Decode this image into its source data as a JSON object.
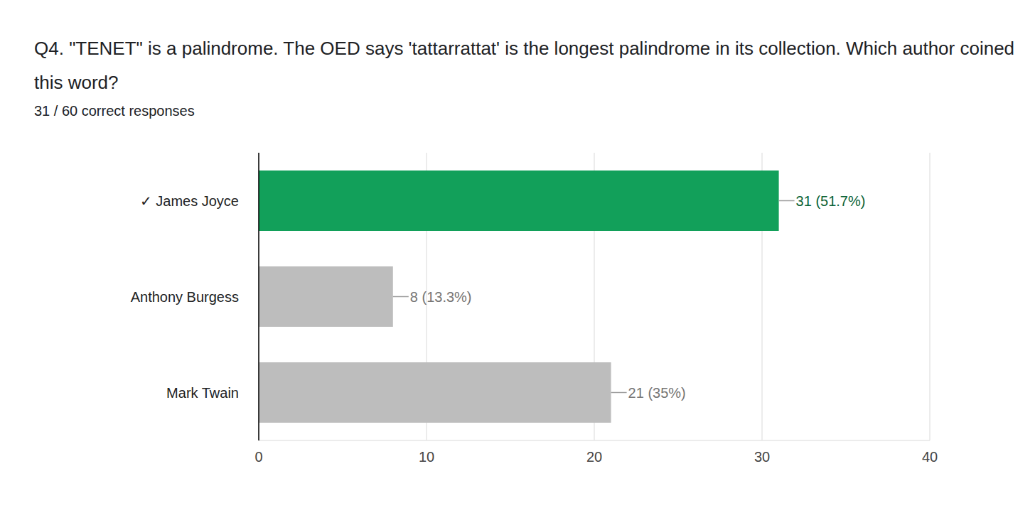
{
  "chart_data": {
    "type": "bar",
    "title": "Q4. \"TENET\" is a palindrome. The OED says 'tattarrattat' is the longest palindrome in its collection. Which author coined this word?",
    "subtitle": "31 / 60 correct responses",
    "categories": [
      "✓ James Joyce",
      "Anthony Burgess",
      "Mark Twain"
    ],
    "values": [
      31,
      8,
      21
    ],
    "value_labels": [
      "31 (51.7%)",
      "8 (13.3%)",
      "21 (35%)"
    ],
    "colors": [
      "#12a05a",
      "#bdbdbd",
      "#bdbdbd"
    ],
    "orientation": "horizontal",
    "xlim": [
      0,
      40
    ],
    "xticks": [
      0,
      10,
      20,
      30,
      40
    ],
    "grid": true,
    "data_labels": true
  }
}
